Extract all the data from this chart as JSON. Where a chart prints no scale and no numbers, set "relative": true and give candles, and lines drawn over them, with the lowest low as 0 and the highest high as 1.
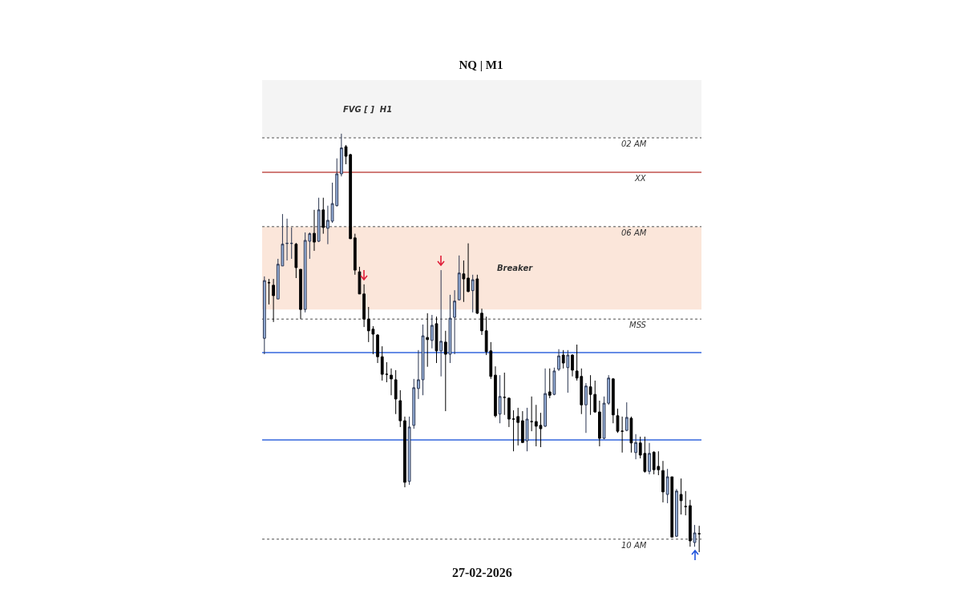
{
  "chart_data": {
    "type": "candlestick",
    "relative": true,
    "title": "NQ | M1",
    "annotations": [
      "27-02-2026"
    ],
    "categories": [
      null,
      null,
      null,
      null,
      null,
      null,
      null,
      null,
      null,
      null,
      null,
      null,
      null,
      null,
      null,
      null,
      null,
      null,
      null,
      null,
      null,
      null,
      null,
      null,
      null,
      null,
      null,
      null,
      null,
      null,
      null,
      null,
      null,
      null,
      null,
      null,
      null,
      null,
      null,
      null,
      null,
      null,
      null,
      null,
      null,
      null,
      null,
      null,
      null,
      null,
      null,
      null,
      null,
      null,
      null,
      null,
      null,
      null,
      null,
      null,
      null,
      null,
      null,
      null,
      null,
      null,
      null,
      null,
      null,
      null,
      null,
      null,
      null,
      null,
      null,
      null,
      null,
      null,
      null,
      null,
      null,
      null,
      null,
      null,
      null,
      null,
      null,
      null,
      null,
      null,
      null,
      null,
      null,
      null,
      null,
      null,
      null
    ],
    "ohlc": [
      [
        0.511,
        0.659,
        0.473,
        0.649
      ],
      [
        0.644,
        0.653,
        0.592,
        0.644
      ],
      [
        0.638,
        0.653,
        0.55,
        0.613
      ],
      [
        0.605,
        0.701,
        0.605,
        0.688
      ],
      [
        0.684,
        0.808,
        0.684,
        0.736
      ],
      [
        0.738,
        0.797,
        0.697,
        0.738
      ],
      [
        0.738,
        0.776,
        0.701,
        0.738
      ],
      [
        0.736,
        0.739,
        0.655,
        0.68
      ],
      [
        0.676,
        0.676,
        0.557,
        0.58
      ],
      [
        0.58,
        0.764,
        0.573,
        0.745
      ],
      [
        0.743,
        0.764,
        0.701,
        0.761
      ],
      [
        0.762,
        0.818,
        0.72,
        0.741
      ],
      [
        0.743,
        0.847,
        0.741,
        0.818
      ],
      [
        0.818,
        0.847,
        0.761,
        0.776
      ],
      [
        0.774,
        0.828,
        0.736,
        0.793
      ],
      [
        0.791,
        0.883,
        0.787,
        0.833
      ],
      [
        0.828,
        0.941,
        0.826,
        0.904
      ],
      [
        0.904,
        1,
        0.898,
        0.966
      ],
      [
        0.969,
        0.973,
        0.927,
        0.946
      ],
      [
        0.95,
        0.952,
        0.749,
        0.749
      ],
      [
        0.751,
        0.761,
        0.663,
        0.674
      ],
      [
        0.67,
        0.682,
        0.617,
        0.617
      ],
      [
        0.617,
        0.64,
        0.538,
        0.557
      ],
      [
        0.557,
        0.586,
        0.502,
        0.529
      ],
      [
        0.533,
        0.54,
        0.473,
        0.521
      ],
      [
        0.519,
        0.521,
        0.452,
        0.467
      ],
      [
        0.467,
        0.492,
        0.41,
        0.425
      ],
      [
        0.425,
        0.454,
        0.406,
        0.425
      ],
      [
        0.423,
        0.439,
        0.375,
        0.414
      ],
      [
        0.412,
        0.435,
        0.33,
        0.366
      ],
      [
        0.362,
        0.387,
        0.299,
        0.314
      ],
      [
        0.314,
        0.324,
        0.155,
        0.167
      ],
      [
        0.169,
        0.324,
        0.161,
        0.299
      ],
      [
        0.303,
        0.414,
        0.295,
        0.393
      ],
      [
        0.391,
        0.483,
        0.366,
        0.412
      ],
      [
        0.412,
        0.544,
        0.375,
        0.517
      ],
      [
        0.513,
        0.571,
        0.443,
        0.508
      ],
      [
        0.506,
        0.567,
        0.487,
        0.542
      ],
      [
        0.546,
        0.563,
        0.452,
        0.481
      ],
      [
        0.481,
        0.674,
        0.42,
        0.504
      ],
      [
        0.502,
        0.529,
        0.337,
        0.473
      ],
      [
        0.473,
        0.615,
        0.452,
        0.559
      ],
      [
        0.561,
        0.626,
        0.473,
        0.6
      ],
      [
        0.603,
        0.709,
        0.602,
        0.667
      ],
      [
        0.665,
        0.697,
        0.598,
        0.653
      ],
      [
        0.655,
        0.738,
        0.621,
        0.623
      ],
      [
        0.625,
        0.663,
        0.573,
        0.651
      ],
      [
        0.653,
        0.663,
        0.569,
        0.571
      ],
      [
        0.571,
        0.582,
        0.519,
        0.529
      ],
      [
        0.529,
        0.563,
        0.471,
        0.479
      ],
      [
        0.481,
        0.502,
        0.414,
        0.42
      ],
      [
        0.423,
        0.444,
        0.322,
        0.326
      ],
      [
        0.33,
        0.423,
        0.308,
        0.372
      ],
      [
        0.37,
        0.429,
        0.328,
        0.37
      ],
      [
        0.368,
        0.37,
        0.299,
        0.318
      ],
      [
        0.318,
        0.339,
        0.241,
        0.318
      ],
      [
        0.324,
        0.345,
        0.255,
        0.31
      ],
      [
        0.314,
        0.337,
        0.262,
        0.262
      ],
      [
        0.266,
        0.345,
        0.241,
        0.318
      ],
      [
        0.312,
        0.372,
        0.289,
        0.312
      ],
      [
        0.312,
        0.352,
        0.253,
        0.301
      ],
      [
        0.303,
        0.333,
        0.251,
        0.295
      ],
      [
        0.301,
        0.439,
        0.299,
        0.379
      ],
      [
        0.383,
        0.439,
        0.368,
        0.375
      ],
      [
        0.377,
        0.441,
        0.375,
        0.433
      ],
      [
        0.437,
        0.485,
        0.433,
        0.469
      ],
      [
        0.471,
        0.483,
        0.439,
        0.452
      ],
      [
        0.441,
        0.483,
        0.381,
        0.471
      ],
      [
        0.471,
        0.473,
        0.42,
        0.435
      ],
      [
        0.433,
        0.496,
        0.41,
        0.416
      ],
      [
        0.42,
        0.439,
        0.33,
        0.352
      ],
      [
        0.352,
        0.404,
        0.285,
        0.397
      ],
      [
        0.395,
        0.423,
        0.328,
        0.377
      ],
      [
        0.377,
        0.41,
        0.333,
        0.335
      ],
      [
        0.335,
        0.362,
        0.253,
        0.272
      ],
      [
        0.272,
        0.372,
        0.27,
        0.356
      ],
      [
        0.356,
        0.423,
        0.352,
        0.416
      ],
      [
        0.414,
        0.416,
        0.308,
        0.328
      ],
      [
        0.326,
        0.343,
        0.285,
        0.289
      ],
      [
        0.289,
        0.324,
        0.238,
        0.289
      ],
      [
        0.291,
        0.358,
        0.289,
        0.322
      ],
      [
        0.32,
        0.324,
        0.238,
        0.261
      ],
      [
        0.238,
        0.282,
        0.222,
        0.262
      ],
      [
        0.261,
        0.276,
        0.224,
        0.232
      ],
      [
        0.236,
        0.276,
        0.19,
        0.193
      ],
      [
        0.193,
        0.261,
        0.186,
        0.236
      ],
      [
        0.239,
        0.241,
        0.186,
        0.197
      ],
      [
        0.205,
        0.241,
        0.184,
        0.197
      ],
      [
        0.195,
        0.218,
        0.119,
        0.144
      ],
      [
        0.138,
        0.199,
        0.117,
        0.18
      ],
      [
        0.18,
        0.18,
        0.036,
        0.036
      ],
      [
        0.038,
        0.151,
        0.036,
        0.146
      ],
      [
        0.138,
        0.176,
        0.09,
        0.123
      ],
      [
        0.109,
        0.146,
        0.088,
        0.109
      ],
      [
        0.111,
        0.125,
        0.013,
        0.027
      ],
      [
        0.023,
        0.065,
        0.013,
        0.046
      ],
      [
        0.044,
        0.063,
        0,
        0.044
      ]
    ],
    "bands": [
      {
        "axis": "y",
        "from": 0.99,
        "to": 1.128,
        "label": "FVG [ ]  H1",
        "color": "#f4f4f4"
      },
      {
        "axis": "y",
        "from": 0.58,
        "to": 0.778,
        "label": "Breaker",
        "color": "#fbe6da"
      }
    ],
    "ref_lines": [
      {
        "axis": "y",
        "value": 0.99,
        "label": "02 AM",
        "color": "#888888",
        "line_style": "dotted"
      },
      {
        "axis": "y",
        "value": 0.778,
        "label": "06 AM",
        "color": "#888888",
        "line_style": "dotted"
      },
      {
        "axis": "y",
        "value": 0.031,
        "label": "10 AM",
        "color": "#888888",
        "line_style": "dotted"
      },
      {
        "axis": "y",
        "value": 0.908,
        "label": "XX",
        "color": "#c0504d",
        "line_style": "solid"
      },
      {
        "axis": "y",
        "value": 0.557,
        "label": "MSS",
        "color": "#888888",
        "line_style": "dotted"
      },
      {
        "axis": "y",
        "value": 0.477,
        "label": null,
        "color": "#3366dd",
        "line_style": "solid"
      },
      {
        "axis": "y",
        "value": 0.268,
        "label": null,
        "color": "#3366dd",
        "line_style": "solid"
      }
    ]
  }
}
